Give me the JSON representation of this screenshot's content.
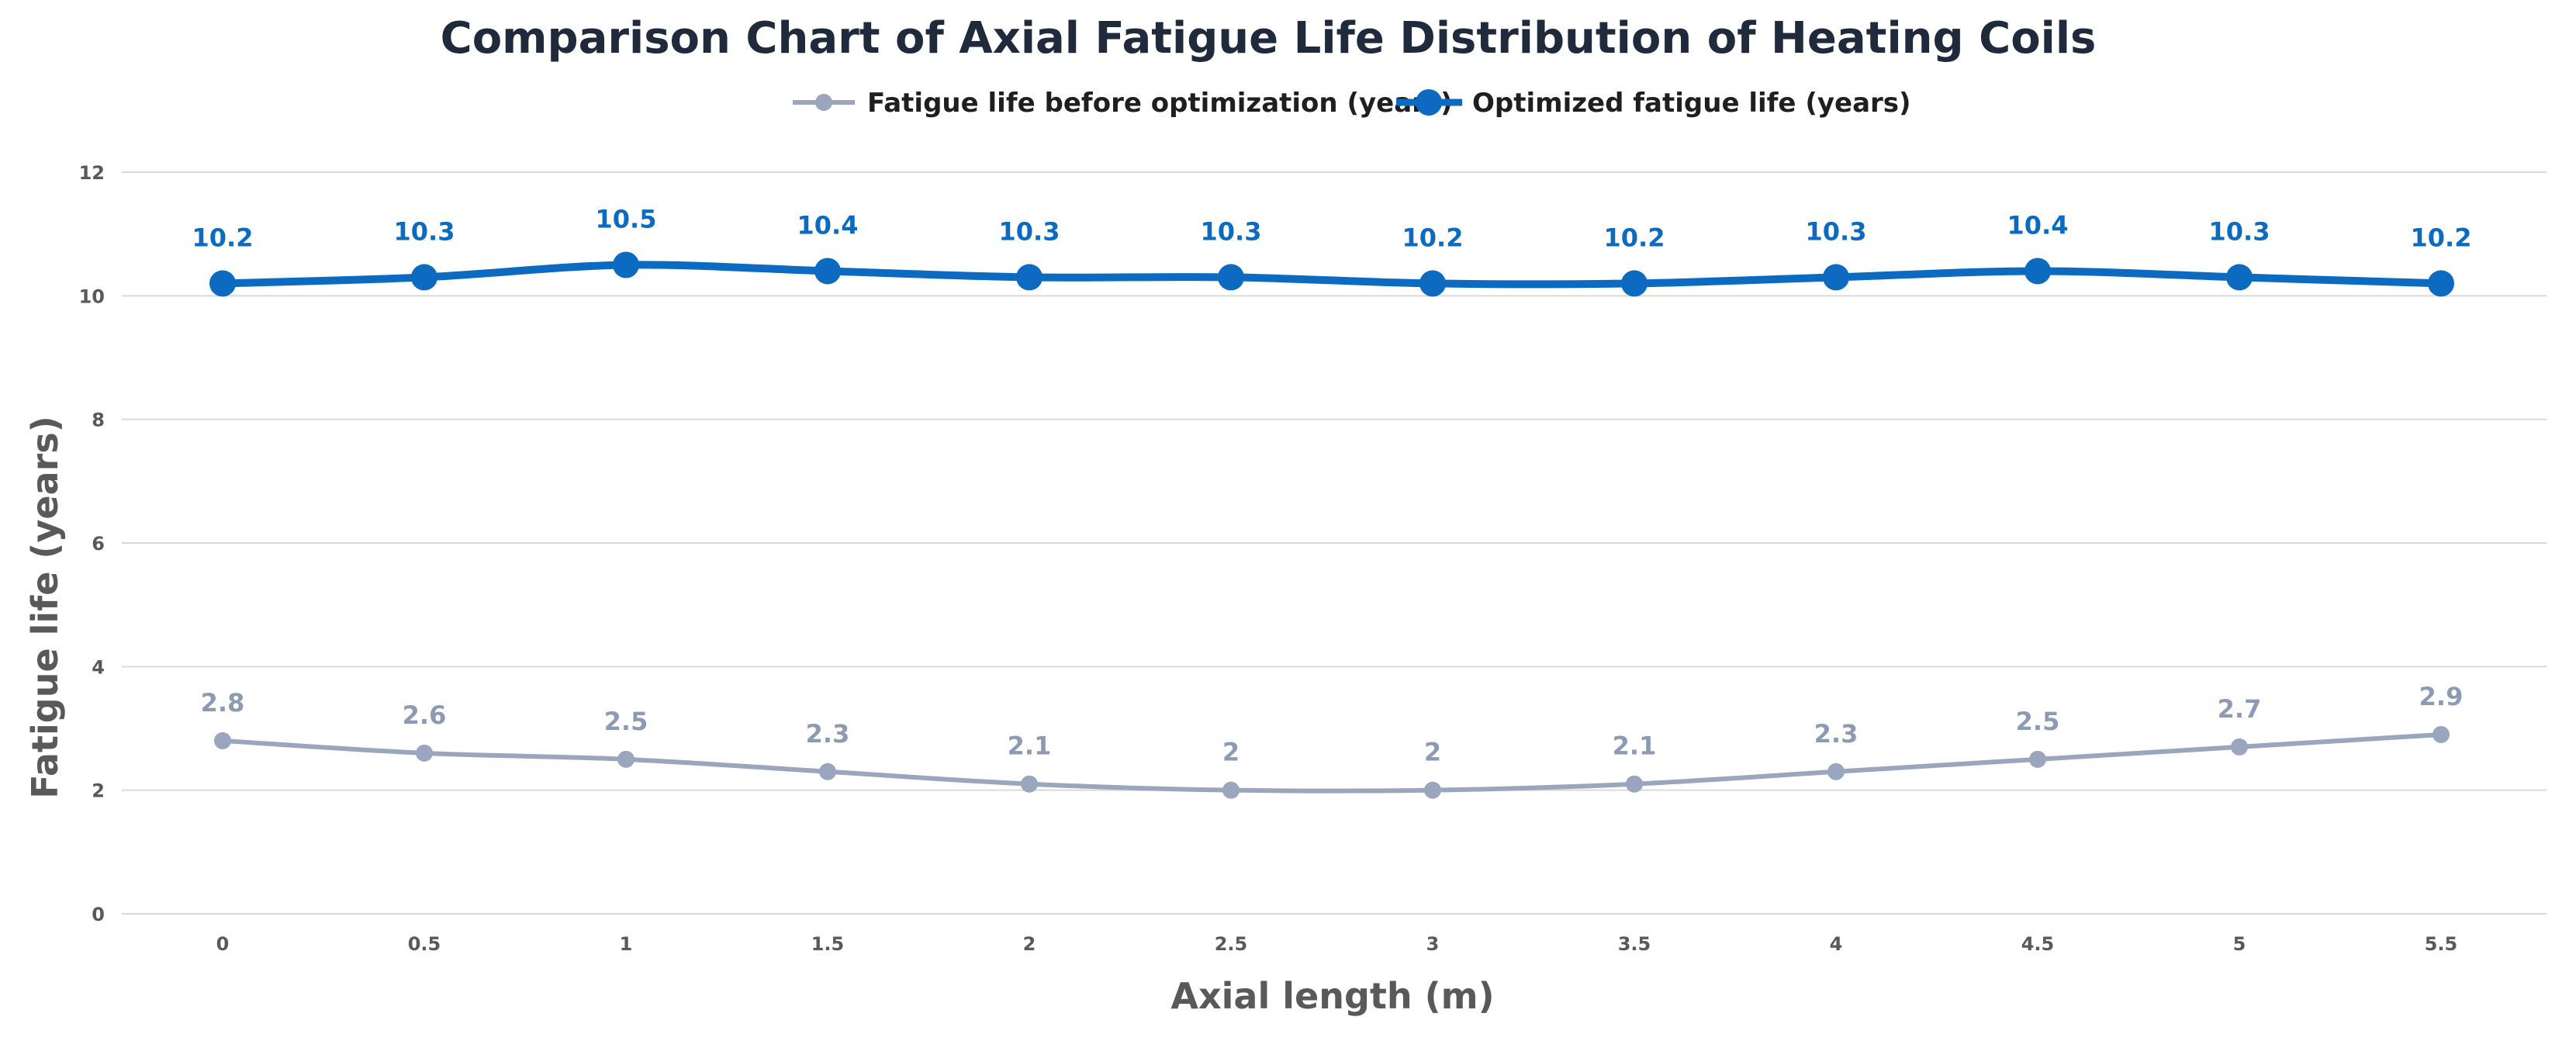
{
  "chart_data": {
    "type": "line",
    "title": "Comparison Chart of Axial Fatigue Life Distribution of Heating Coils",
    "xlabel": "Axial length (m)",
    "ylabel": "Fatigue life (years)",
    "x": [
      "0",
      "0.5",
      "1",
      "1.5",
      "2",
      "2.5",
      "3",
      "3.5",
      "4",
      "4.5",
      "5",
      "5.5"
    ],
    "ylim": [
      0,
      12
    ],
    "yticks": [
      "0",
      "2",
      "4",
      "6",
      "8",
      "10",
      "12"
    ],
    "grid": true,
    "legend_position": "top",
    "series": [
      {
        "name": "Fatigue life before optimization (years)",
        "values": [
          2.8,
          2.6,
          2.5,
          2.3,
          2.1,
          2,
          2,
          2.1,
          2.3,
          2.5,
          2.7,
          2.9
        ],
        "color": "#9aa6bd",
        "data_label_color": "#8d9ab3",
        "smooth": true,
        "data_labels": true
      },
      {
        "name": "Optimized fatigue life (years)",
        "values": [
          10.2,
          10.3,
          10.5,
          10.4,
          10.3,
          10.3,
          10.2,
          10.2,
          10.3,
          10.4,
          10.3,
          10.2
        ],
        "color": "#0c6bc0",
        "data_label_color": "#0c6bc0",
        "smooth": true,
        "data_labels": true
      }
    ]
  }
}
